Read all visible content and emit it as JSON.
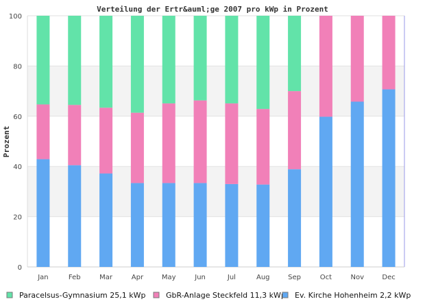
{
  "chart_data": {
    "type": "bar",
    "stacked": true,
    "title": "Verteilung der Ertr&auml;ge 2007 pro kWp in Prozent",
    "xlabel": "",
    "ylabel": "Prozent",
    "ylim": [
      0,
      100
    ],
    "yticks": [
      0,
      20,
      40,
      60,
      80,
      100
    ],
    "grid": true,
    "legend_position": "bottom",
    "categories": [
      "Jan",
      "Feb",
      "Mar",
      "Apr",
      "May",
      "Jun",
      "Jul",
      "Aug",
      "Sep",
      "Oct",
      "Nov",
      "Dec"
    ],
    "series": [
      {
        "name": "Ev. Kirche Hohenheim 2,2 kWp",
        "color": "#60a8f2",
        "values": [
          42.9,
          40.5,
          37.2,
          33.4,
          33.4,
          33.4,
          33.0,
          32.8,
          38.9,
          59.8,
          65.8,
          70.7
        ]
      },
      {
        "name": "GbR-Anlage Steckfeld 11,3 kWp",
        "color": "#f180b8",
        "values": [
          21.8,
          24.0,
          26.2,
          28.0,
          31.7,
          32.9,
          32.1,
          30.1,
          31.1,
          40.2,
          34.2,
          29.3
        ]
      },
      {
        "name": "Paracelsus-Gymnasium 25,1 kWp",
        "color": "#62e3a9",
        "values": [
          35.3,
          35.5,
          36.6,
          38.6,
          34.9,
          33.7,
          34.9,
          37.1,
          30.0,
          0,
          0,
          0
        ]
      }
    ],
    "legend_order": [
      2,
      1,
      0
    ]
  }
}
